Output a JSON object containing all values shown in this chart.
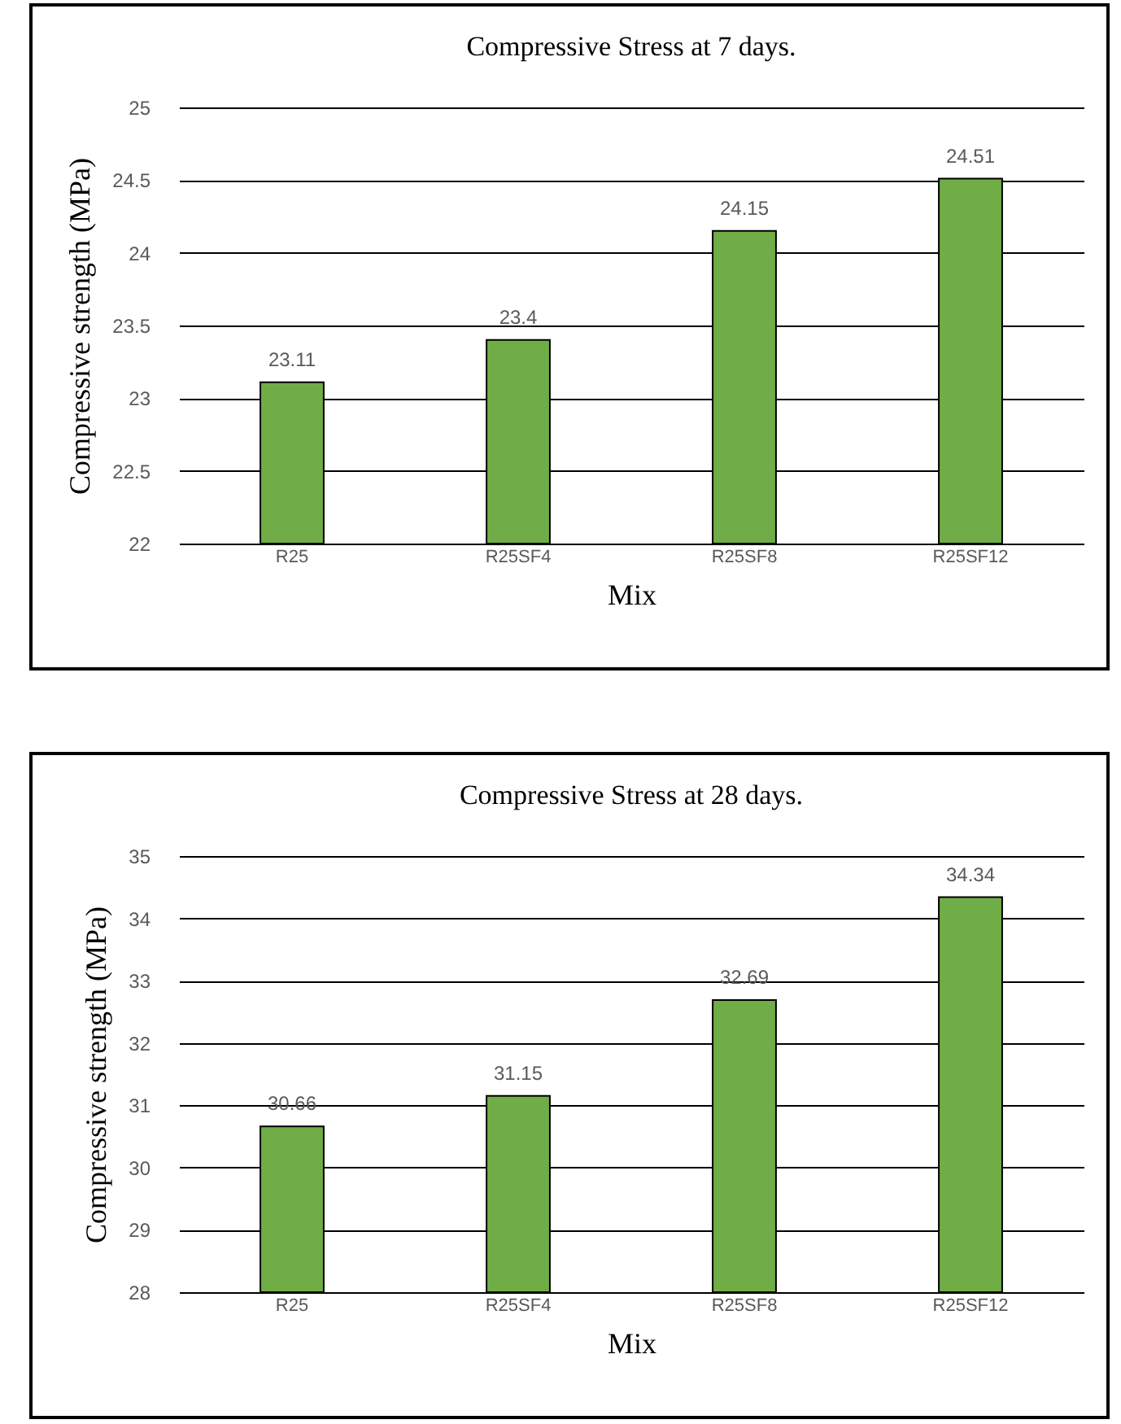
{
  "chart_data": [
    {
      "type": "bar",
      "title": "Compressive Stress at 7 days.",
      "xlabel": "Mix",
      "ylabel": "Compressive strength  (MPa)",
      "categories": [
        "R25",
        "R25SF4",
        "R25SF8",
        "R25SF12"
      ],
      "values": [
        23.11,
        23.4,
        24.15,
        24.51
      ],
      "color": "#70ad47",
      "ylim": [
        22,
        25
      ],
      "yticks": [
        22,
        22.5,
        23,
        23.5,
        24,
        24.5,
        25
      ],
      "grid": "y",
      "data_labels": true
    },
    {
      "type": "bar",
      "title": "Compressive Stress at 28 days.",
      "xlabel": "Mix",
      "ylabel": "Compressive strength  (MPa)",
      "categories": [
        "R25",
        "R25SF4",
        "R25SF8",
        "R25SF12"
      ],
      "values": [
        30.66,
        31.15,
        32.69,
        34.34
      ],
      "color": "#70ad47",
      "ylim": [
        28,
        35
      ],
      "yticks": [
        28,
        29,
        30,
        31,
        32,
        33,
        34,
        35
      ],
      "grid": "y",
      "data_labels": true
    }
  ]
}
